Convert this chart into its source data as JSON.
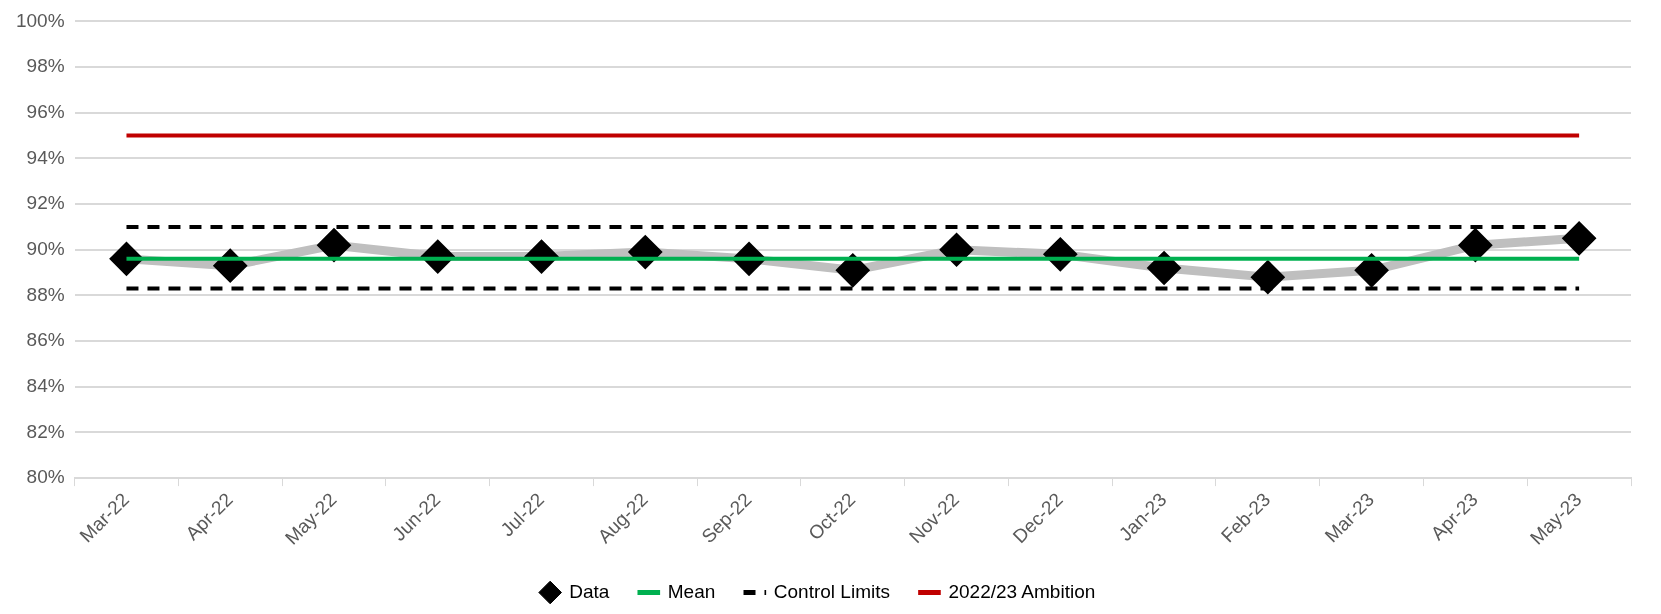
{
  "chart_data": {
    "type": "line",
    "categories": [
      "Mar-22",
      "Apr-22",
      "May-22",
      "Jun-22",
      "Jul-22",
      "Aug-22",
      "Sep-22",
      "Oct-22",
      "Nov-22",
      "Dec-22",
      "Jan-23",
      "Feb-23",
      "Mar-23",
      "Apr-23",
      "May-23"
    ],
    "series": [
      {
        "name": "Data",
        "color": "#bfbfbf",
        "marker": "diamond",
        "values": [
          89.6,
          89.3,
          90.2,
          89.7,
          89.7,
          89.9,
          89.6,
          89.1,
          90.0,
          89.8,
          89.2,
          88.8,
          89.1,
          90.2,
          90.5
        ]
      },
      {
        "name": "Mean",
        "color": "#00b050",
        "marker": "none",
        "values": [
          89.6,
          89.6,
          89.6,
          89.6,
          89.6,
          89.6,
          89.6,
          89.6,
          89.6,
          89.6,
          89.6,
          89.6,
          89.6,
          89.6,
          89.6
        ]
      },
      {
        "name": "Control Limits",
        "color": "#000000",
        "marker": "none",
        "line_style": "dashed",
        "values": [
          91.0,
          91.0,
          91.0,
          91.0,
          91.0,
          91.0,
          91.0,
          91.0,
          91.0,
          91.0,
          91.0,
          91.0,
          91.0,
          91.0,
          91.0
        ]
      },
      {
        "color": "#000000",
        "marker": "none",
        "line_style": "dashed",
        "values": [
          88.3,
          88.3,
          88.3,
          88.3,
          88.3,
          88.3,
          88.3,
          88.3,
          88.3,
          88.3,
          88.3,
          88.3,
          88.3,
          88.3,
          88.3
        ]
      },
      {
        "name": "2022/23 Ambition",
        "color": "#c00000",
        "marker": "none",
        "values": [
          95,
          95,
          95,
          95,
          95,
          95,
          95,
          95,
          95,
          95,
          95,
          95,
          95,
          95,
          95
        ]
      }
    ],
    "ylim": [
      80,
      100
    ],
    "yticks": [
      {
        "value": 80,
        "label": "80%"
      },
      {
        "value": 82,
        "label": "82%"
      },
      {
        "value": 84,
        "label": "84%"
      },
      {
        "value": 86,
        "label": "86%"
      },
      {
        "value": 88,
        "label": "88%"
      },
      {
        "value": 90,
        "label": "90%"
      },
      {
        "value": 92,
        "label": "92%"
      },
      {
        "value": 94,
        "label": "94%"
      },
      {
        "value": 96,
        "label": "96%"
      },
      {
        "value": 98,
        "label": "98%"
      },
      {
        "value": 100,
        "label": "100%"
      }
    ],
    "grid": "y",
    "legend": "bottom"
  }
}
